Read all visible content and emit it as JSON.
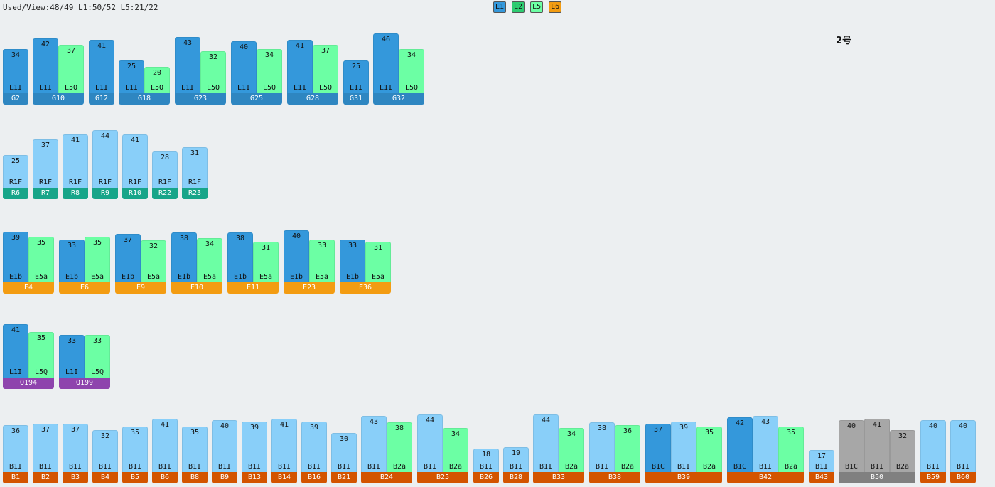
{
  "status": "Used/View:48/49 L1:50/52 L5:21/22",
  "legend": [
    {
      "label": "L1",
      "color": "#3498db"
    },
    {
      "label": "L2",
      "color": "#2ecc71"
    },
    {
      "label": "L5",
      "color": "#6cffa4"
    },
    {
      "label": "L6",
      "color": "#f39c12"
    }
  ],
  "page_label": "2号",
  "colors": {
    "L1I": "#3498db",
    "L5Q": "#6cffa4",
    "R1F": "#89cff9",
    "E1b": "#3498db",
    "E5a": "#6cffa4",
    "B1I": "#89cff9",
    "B2a": "#6cffa4",
    "B1C_blue": "#3498db",
    "B1C_gray": "#a7a7a7",
    "B1I_gray": "#a7a7a7",
    "B2a_gray": "#a7a7a7"
  },
  "rows": [
    {
      "y": 0,
      "groups": [
        {
          "label": "G2",
          "labelColor": "#2e86c1",
          "bars": [
            {
              "v": 34,
              "t": "L1I",
              "c": "#3498db"
            }
          ]
        },
        {
          "label": "G10",
          "labelColor": "#2e86c1",
          "bars": [
            {
              "v": 42,
              "t": "L1I",
              "c": "#3498db"
            },
            {
              "v": 37,
              "t": "L5Q",
              "c": "#6cffa4"
            }
          ]
        },
        {
          "label": "G12",
          "labelColor": "#2e86c1",
          "bars": [
            {
              "v": 41,
              "t": "L1I",
              "c": "#3498db"
            }
          ]
        },
        {
          "label": "G18",
          "labelColor": "#2e86c1",
          "bars": [
            {
              "v": 25,
              "t": "L1I",
              "c": "#3498db"
            },
            {
              "v": 20,
              "t": "L5Q",
              "c": "#6cffa4"
            }
          ]
        },
        {
          "label": "G23",
          "labelColor": "#2e86c1",
          "bars": [
            {
              "v": 43,
              "t": "L1I",
              "c": "#3498db"
            },
            {
              "v": 32,
              "t": "L5Q",
              "c": "#6cffa4"
            }
          ]
        },
        {
          "label": "G25",
          "labelColor": "#2e86c1",
          "bars": [
            {
              "v": 40,
              "t": "L1I",
              "c": "#3498db"
            },
            {
              "v": 34,
              "t": "L5Q",
              "c": "#6cffa4"
            }
          ]
        },
        {
          "label": "G28",
          "labelColor": "#2e86c1",
          "bars": [
            {
              "v": 41,
              "t": "L1I",
              "c": "#3498db"
            },
            {
              "v": 37,
              "t": "L5Q",
              "c": "#6cffa4"
            }
          ]
        },
        {
          "label": "G31",
          "labelColor": "#2e86c1",
          "bars": [
            {
              "v": 25,
              "t": "L1I",
              "c": "#3498db"
            }
          ]
        },
        {
          "label": "G32",
          "labelColor": "#2e86c1",
          "bars": [
            {
              "v": 46,
              "t": "L1I",
              "c": "#3498db"
            },
            {
              "v": 34,
              "t": "L5Q",
              "c": "#6cffa4"
            }
          ]
        }
      ]
    },
    {
      "y": 1,
      "groups": [
        {
          "label": "R6",
          "labelColor": "#17a589",
          "bars": [
            {
              "v": 25,
              "t": "R1F",
              "c": "#89cff9"
            }
          ]
        },
        {
          "label": "R7",
          "labelColor": "#17a589",
          "bars": [
            {
              "v": 37,
              "t": "R1F",
              "c": "#89cff9"
            }
          ]
        },
        {
          "label": "R8",
          "labelColor": "#17a589",
          "bars": [
            {
              "v": 41,
              "t": "R1F",
              "c": "#89cff9"
            }
          ]
        },
        {
          "label": "R9",
          "labelColor": "#17a589",
          "bars": [
            {
              "v": 44,
              "t": "R1F",
              "c": "#89cff9"
            }
          ]
        },
        {
          "label": "R10",
          "labelColor": "#17a589",
          "bars": [
            {
              "v": 41,
              "t": "R1F",
              "c": "#89cff9"
            }
          ]
        },
        {
          "label": "R22",
          "labelColor": "#17a589",
          "bars": [
            {
              "v": 28,
              "t": "R1F",
              "c": "#89cff9"
            }
          ]
        },
        {
          "label": "R23",
          "labelColor": "#17a589",
          "bars": [
            {
              "v": 31,
              "t": "R1F",
              "c": "#89cff9"
            }
          ]
        }
      ]
    },
    {
      "y": 2,
      "groups": [
        {
          "label": "E4",
          "labelColor": "#f39c12",
          "bars": [
            {
              "v": 39,
              "t": "E1b",
              "c": "#3498db"
            },
            {
              "v": 35,
              "t": "E5a",
              "c": "#6cffa4"
            }
          ]
        },
        {
          "label": "E6",
          "labelColor": "#f39c12",
          "bars": [
            {
              "v": 33,
              "t": "E1b",
              "c": "#3498db"
            },
            {
              "v": 35,
              "t": "E5a",
              "c": "#6cffa4"
            }
          ]
        },
        {
          "label": "E9",
          "labelColor": "#f39c12",
          "bars": [
            {
              "v": 37,
              "t": "E1b",
              "c": "#3498db"
            },
            {
              "v": 32,
              "t": "E5a",
              "c": "#6cffa4"
            }
          ]
        },
        {
          "label": "E10",
          "labelColor": "#f39c12",
          "bars": [
            {
              "v": 38,
              "t": "E1b",
              "c": "#3498db"
            },
            {
              "v": 34,
              "t": "E5a",
              "c": "#6cffa4"
            }
          ]
        },
        {
          "label": "E11",
          "labelColor": "#f39c12",
          "bars": [
            {
              "v": 38,
              "t": "E1b",
              "c": "#3498db"
            },
            {
              "v": 31,
              "t": "E5a",
              "c": "#6cffa4"
            }
          ]
        },
        {
          "label": "E23",
          "labelColor": "#f39c12",
          "bars": [
            {
              "v": 40,
              "t": "E1b",
              "c": "#3498db"
            },
            {
              "v": 33,
              "t": "E5a",
              "c": "#6cffa4"
            }
          ]
        },
        {
          "label": "E36",
          "labelColor": "#f39c12",
          "bars": [
            {
              "v": 33,
              "t": "E1b",
              "c": "#3498db"
            },
            {
              "v": 31,
              "t": "E5a",
              "c": "#6cffa4"
            }
          ]
        }
      ]
    },
    {
      "y": 3,
      "groups": [
        {
          "label": "Q194",
          "labelColor": "#8e44ad",
          "bars": [
            {
              "v": 41,
              "t": "L1I",
              "c": "#3498db"
            },
            {
              "v": 35,
              "t": "L5Q",
              "c": "#6cffa4"
            }
          ]
        },
        {
          "label": "Q199",
          "labelColor": "#8e44ad",
          "bars": [
            {
              "v": 33,
              "t": "L1I",
              "c": "#3498db"
            },
            {
              "v": 33,
              "t": "L5Q",
              "c": "#6cffa4"
            }
          ]
        }
      ]
    },
    {
      "y": 4,
      "groups": [
        {
          "label": "B1",
          "labelColor": "#d35400",
          "bars": [
            {
              "v": 36,
              "t": "B1I",
              "c": "#89cff9"
            }
          ]
        },
        {
          "label": "B2",
          "labelColor": "#d35400",
          "bars": [
            {
              "v": 37,
              "t": "B1I",
              "c": "#89cff9"
            }
          ]
        },
        {
          "label": "B3",
          "labelColor": "#d35400",
          "bars": [
            {
              "v": 37,
              "t": "B1I",
              "c": "#89cff9"
            }
          ]
        },
        {
          "label": "B4",
          "labelColor": "#d35400",
          "bars": [
            {
              "v": 32,
              "t": "B1I",
              "c": "#89cff9"
            }
          ]
        },
        {
          "label": "B5",
          "labelColor": "#d35400",
          "bars": [
            {
              "v": 35,
              "t": "B1I",
              "c": "#89cff9"
            }
          ]
        },
        {
          "label": "B6",
          "labelColor": "#d35400",
          "bars": [
            {
              "v": 41,
              "t": "B1I",
              "c": "#89cff9"
            }
          ]
        },
        {
          "label": "B8",
          "labelColor": "#d35400",
          "bars": [
            {
              "v": 35,
              "t": "B1I",
              "c": "#89cff9"
            }
          ]
        },
        {
          "label": "B9",
          "labelColor": "#d35400",
          "bars": [
            {
              "v": 40,
              "t": "B1I",
              "c": "#89cff9"
            }
          ]
        },
        {
          "label": "B13",
          "labelColor": "#d35400",
          "bars": [
            {
              "v": 39,
              "t": "B1I",
              "c": "#89cff9"
            }
          ]
        },
        {
          "label": "B14",
          "labelColor": "#d35400",
          "bars": [
            {
              "v": 41,
              "t": "B1I",
              "c": "#89cff9"
            }
          ]
        },
        {
          "label": "B16",
          "labelColor": "#d35400",
          "bars": [
            {
              "v": 39,
              "t": "B1I",
              "c": "#89cff9"
            }
          ]
        },
        {
          "label": "B21",
          "labelColor": "#d35400",
          "bars": [
            {
              "v": 30,
              "t": "B1I",
              "c": "#89cff9"
            }
          ]
        },
        {
          "label": "B24",
          "labelColor": "#d35400",
          "bars": [
            {
              "v": 43,
              "t": "B1I",
              "c": "#89cff9"
            },
            {
              "v": 38,
              "t": "B2a",
              "c": "#6cffa4"
            }
          ]
        },
        {
          "label": "B25",
          "labelColor": "#d35400",
          "bars": [
            {
              "v": 44,
              "t": "B1I",
              "c": "#89cff9"
            },
            {
              "v": 34,
              "t": "B2a",
              "c": "#6cffa4"
            }
          ]
        },
        {
          "label": "B26",
          "labelColor": "#d35400",
          "bars": [
            {
              "v": 18,
              "t": "B1I",
              "c": "#89cff9"
            }
          ]
        },
        {
          "label": "B28",
          "labelColor": "#d35400",
          "bars": [
            {
              "v": 19,
              "t": "B1I",
              "c": "#89cff9"
            }
          ]
        },
        {
          "label": "B33",
          "labelColor": "#d35400",
          "bars": [
            {
              "v": 44,
              "t": "B1I",
              "c": "#89cff9"
            },
            {
              "v": 34,
              "t": "B2a",
              "c": "#6cffa4"
            }
          ]
        },
        {
          "label": "B38",
          "labelColor": "#d35400",
          "bars": [
            {
              "v": 38,
              "t": "B1I",
              "c": "#89cff9"
            },
            {
              "v": 36,
              "t": "B2a",
              "c": "#6cffa4"
            }
          ]
        },
        {
          "label": "B39",
          "labelColor": "#d35400",
          "bars": [
            {
              "v": 37,
              "t": "B1C",
              "c": "#3498db"
            },
            {
              "v": 39,
              "t": "B1I",
              "c": "#89cff9"
            },
            {
              "v": 35,
              "t": "B2a",
              "c": "#6cffa4"
            }
          ]
        },
        {
          "label": "B42",
          "labelColor": "#d35400",
          "bars": [
            {
              "v": 42,
              "t": "B1C",
              "c": "#3498db"
            },
            {
              "v": 43,
              "t": "B1I",
              "c": "#89cff9"
            },
            {
              "v": 35,
              "t": "B2a",
              "c": "#6cffa4"
            }
          ]
        },
        {
          "label": "B43",
          "labelColor": "#d35400",
          "bars": [
            {
              "v": 17,
              "t": "B1I",
              "c": "#89cff9"
            }
          ]
        },
        {
          "label": "B50",
          "labelColor": "#808080",
          "bars": [
            {
              "v": 40,
              "t": "B1C",
              "c": "#a7a7a7"
            },
            {
              "v": 41,
              "t": "B1I",
              "c": "#a7a7a7"
            },
            {
              "v": 32,
              "t": "B2a",
              "c": "#a7a7a7"
            }
          ]
        },
        {
          "label": "B59",
          "labelColor": "#d35400",
          "bars": [
            {
              "v": 40,
              "t": "B1I",
              "c": "#89cff9"
            }
          ]
        },
        {
          "label": "B60",
          "labelColor": "#d35400",
          "bars": [
            {
              "v": 40,
              "t": "B1I",
              "c": "#89cff9"
            }
          ]
        }
      ]
    }
  ]
}
